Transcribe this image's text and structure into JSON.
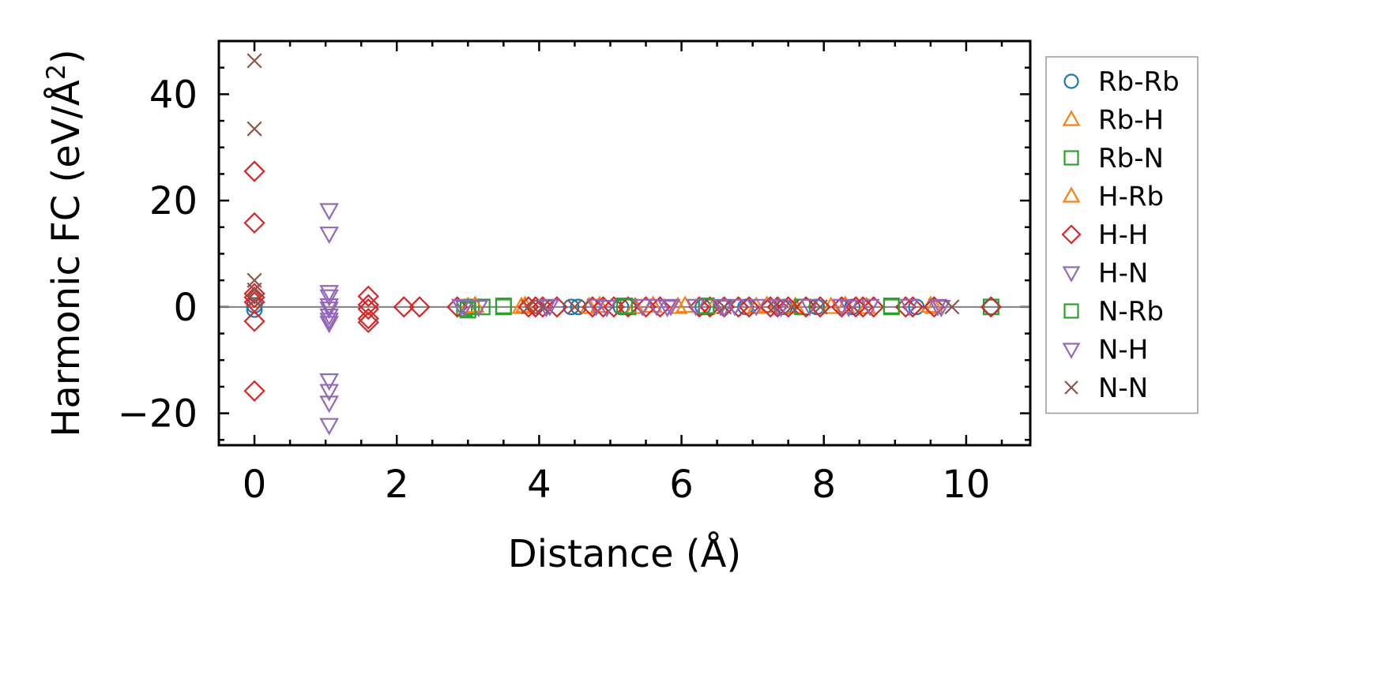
{
  "chart_data": {
    "type": "scatter",
    "title": "",
    "xlabel": "Distance (Å)",
    "ylabel": "Harmonic FC (eV/Å²)",
    "ylabel_parts": {
      "main": "Harmonic FC (eV/Å",
      "sup": "2",
      "close": ")"
    },
    "xlim": [
      -0.5,
      10.9
    ],
    "ylim": [
      -26,
      50
    ],
    "x_ticks": [
      0,
      2,
      4,
      6,
      8,
      10
    ],
    "x_tick_labels": [
      "0",
      "2",
      "4",
      "6",
      "8",
      "10"
    ],
    "y_ticks": [
      -20,
      0,
      20,
      40
    ],
    "y_tick_labels": [
      "−20",
      "0",
      "20",
      "40"
    ],
    "x_minor_step": 0.5,
    "y_minor_step": 5,
    "grid": false,
    "zero_line": true,
    "legend_position": "outside-right",
    "series": [
      {
        "name": "Rb-Rb",
        "marker": "circle",
        "color": "#1f77b4",
        "points": [
          [
            0,
            0.3
          ],
          [
            0,
            -0.5
          ],
          [
            4.45,
            0
          ],
          [
            4.55,
            0
          ],
          [
            5.15,
            0
          ],
          [
            6.3,
            0
          ],
          [
            6.9,
            0
          ],
          [
            7.45,
            0
          ],
          [
            7.9,
            0
          ],
          [
            8.4,
            0
          ],
          [
            9.3,
            0
          ],
          [
            10.35,
            0
          ]
        ]
      },
      {
        "name": "Rb-H",
        "marker": "triangle-up",
        "color": "#ff7f0e",
        "points": [
          [
            3.0,
            0
          ],
          [
            3.75,
            0
          ],
          [
            4.7,
            0
          ],
          [
            5.35,
            0
          ],
          [
            5.95,
            0
          ],
          [
            6.45,
            0
          ],
          [
            7.05,
            0
          ],
          [
            7.6,
            0
          ],
          [
            8.1,
            0
          ],
          [
            8.6,
            0
          ],
          [
            9.55,
            0
          ]
        ]
      },
      {
        "name": "Rb-N",
        "marker": "square",
        "color": "#2ca02c",
        "points": [
          [
            2.95,
            -0.3
          ],
          [
            3.05,
            0
          ],
          [
            3.2,
            0
          ],
          [
            3.5,
            0
          ],
          [
            5.25,
            0
          ],
          [
            6.35,
            0
          ],
          [
            7.7,
            0
          ],
          [
            8.95,
            0
          ],
          [
            10.35,
            0
          ]
        ]
      },
      {
        "name": "H-Rb",
        "marker": "triangle-up",
        "color": "#ff7f0e",
        "points": [
          [
            3.1,
            0.2
          ],
          [
            3.8,
            0.2
          ],
          [
            4.85,
            0.2
          ],
          [
            5.6,
            0.2
          ],
          [
            6.05,
            0.2
          ],
          [
            7.2,
            0.2
          ],
          [
            8.3,
            0.2
          ],
          [
            9.5,
            0.2
          ]
        ]
      },
      {
        "name": "H-H",
        "marker": "diamond",
        "color": "#d62728",
        "points": [
          [
            0,
            25.5
          ],
          [
            0,
            15.8
          ],
          [
            0,
            2.5
          ],
          [
            0,
            1.8
          ],
          [
            0,
            0.9
          ],
          [
            0,
            -2.7
          ],
          [
            0,
            -15.8
          ],
          [
            1.6,
            2.0
          ],
          [
            1.6,
            0.4
          ],
          [
            1.6,
            -0.4
          ],
          [
            1.6,
            -2.2
          ],
          [
            1.6,
            -2.9
          ],
          [
            2.1,
            0
          ],
          [
            2.32,
            0
          ],
          [
            2.85,
            0
          ],
          [
            3.85,
            0
          ],
          [
            3.95,
            0
          ],
          [
            4.05,
            0
          ],
          [
            4.25,
            0
          ],
          [
            4.75,
            0
          ],
          [
            4.9,
            0
          ],
          [
            5.05,
            0
          ],
          [
            5.25,
            0
          ],
          [
            5.5,
            0
          ],
          [
            5.7,
            0
          ],
          [
            6.25,
            0
          ],
          [
            6.4,
            0
          ],
          [
            6.6,
            0
          ],
          [
            6.8,
            0
          ],
          [
            6.95,
            0
          ],
          [
            7.25,
            0
          ],
          [
            7.35,
            0
          ],
          [
            7.5,
            0
          ],
          [
            7.75,
            0
          ],
          [
            7.95,
            0
          ],
          [
            8.25,
            0
          ],
          [
            8.45,
            0
          ],
          [
            8.55,
            0
          ],
          [
            8.7,
            0
          ],
          [
            9.15,
            0
          ],
          [
            9.25,
            0
          ],
          [
            9.55,
            0
          ],
          [
            10.35,
            0
          ]
        ]
      },
      {
        "name": "H-N",
        "marker": "triangle-down",
        "color": "#9467bd",
        "points": [
          [
            1.05,
            18.2
          ],
          [
            1.05,
            13.8
          ],
          [
            1.05,
            2.8
          ],
          [
            1.05,
            2.0
          ],
          [
            1.05,
            -0.3
          ],
          [
            1.05,
            -1.6
          ],
          [
            1.05,
            -2.4
          ],
          [
            1.05,
            -3.0
          ],
          [
            1.05,
            -13.8
          ],
          [
            1.05,
            -15.8
          ],
          [
            1.05,
            -18.0
          ],
          [
            1.05,
            -22.2
          ],
          [
            2.95,
            0
          ],
          [
            3.15,
            0
          ],
          [
            4.1,
            0
          ],
          [
            4.95,
            0
          ],
          [
            5.8,
            0
          ],
          [
            6.6,
            0
          ],
          [
            7.4,
            0
          ],
          [
            8.35,
            0
          ],
          [
            9.65,
            0
          ]
        ]
      },
      {
        "name": "N-Rb",
        "marker": "square",
        "color": "#2ca02c",
        "points": [
          [
            3.0,
            -0.6
          ],
          [
            3.5,
            0.2
          ],
          [
            5.2,
            0.2
          ],
          [
            6.35,
            0.2
          ],
          [
            8.95,
            0.2
          ]
        ]
      },
      {
        "name": "N-H",
        "marker": "triangle-down",
        "color": "#9467bd",
        "points": [
          [
            1.05,
            0.3
          ],
          [
            2.9,
            0.2
          ],
          [
            4.15,
            0.2
          ],
          [
            4.8,
            0.2
          ],
          [
            5.45,
            0.2
          ],
          [
            5.65,
            0.2
          ],
          [
            5.85,
            0.2
          ],
          [
            6.2,
            0.2
          ],
          [
            6.55,
            0.2
          ],
          [
            6.75,
            0.2
          ],
          [
            7.05,
            0.2
          ],
          [
            7.35,
            0.2
          ],
          [
            7.8,
            0.2
          ],
          [
            8.25,
            0.2
          ],
          [
            8.65,
            0.2
          ],
          [
            9.2,
            0.2
          ],
          [
            9.6,
            0.2
          ]
        ]
      },
      {
        "name": "N-N",
        "marker": "x",
        "color": "#8c564b",
        "points": [
          [
            0,
            46.3
          ],
          [
            0,
            33.5
          ],
          [
            0,
            5.0
          ],
          [
            0,
            3.2
          ],
          [
            0,
            1.2
          ],
          [
            3.85,
            0
          ],
          [
            4.05,
            0
          ],
          [
            4.5,
            0
          ],
          [
            6.6,
            0
          ],
          [
            7.3,
            0
          ],
          [
            7.55,
            0
          ],
          [
            7.95,
            0
          ],
          [
            9.8,
            0
          ]
        ]
      }
    ]
  }
}
